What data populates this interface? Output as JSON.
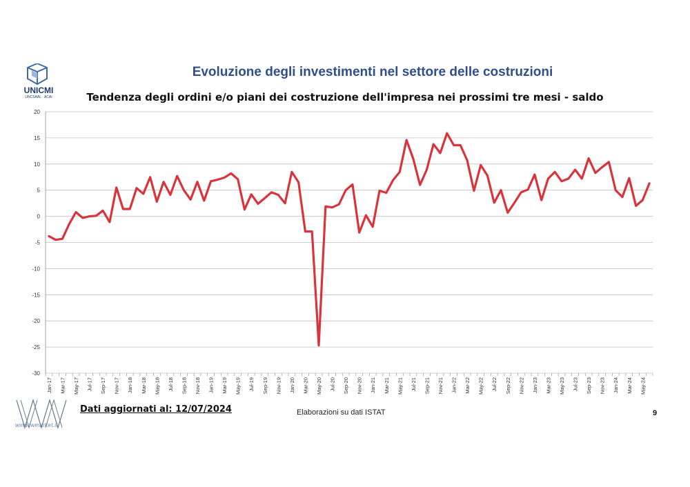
{
  "logo": {
    "name": "UNICMI",
    "sub": "UNCSAAL · ACAI"
  },
  "title": "Evoluzione degli investimenti nel settore delle costruzioni",
  "subtitle": "Tendenza degli ordini e/o piani dei costruzione dell'impresa nei prossimi tre mesi - saldo",
  "footer": {
    "updated": "Dati aggiornati al: 12/07/2024",
    "source": "Elaborazioni su dati ISTAT",
    "page": "9",
    "watermark": "windowmarket.it"
  },
  "colors": {
    "line": "#d9343b",
    "title": "#2f4f8a",
    "grid": "#bfbfbf",
    "axis": "#888888"
  },
  "chart_data": {
    "type": "line",
    "ylim": [
      -30,
      20
    ],
    "yticks": [
      20,
      15,
      10,
      5,
      0,
      -5,
      -10,
      -15,
      -20,
      -25,
      -30
    ],
    "grid": true,
    "tick_labels": [
      "Jan-17",
      "Mar-17",
      "May-17",
      "Jul-17",
      "Sep-17",
      "Nov-17",
      "Jan-18",
      "Mar-18",
      "May-18",
      "Jul-18",
      "Sep-18",
      "Nov-18",
      "Jan-19",
      "Mar-19",
      "May-19",
      "Jul-19",
      "Sep-19",
      "Nov-19",
      "Jan-20",
      "Mar-20",
      "May-20",
      "Jul-20",
      "Sep-20",
      "Nov-20",
      "Jan-21",
      "Mar-21",
      "May-21",
      "Jul-21",
      "Sep-21",
      "Nov-21",
      "Jan-22",
      "Mar-22",
      "May-22",
      "Jul-22",
      "Sep-22",
      "Nov-22",
      "Jan-23",
      "Mar-23",
      "May-23",
      "Jul-23",
      "Sep-23",
      "Nov-23",
      "Jan-24",
      "Mar-24",
      "May-24"
    ],
    "series": [
      {
        "values": [
          -3.8,
          -4.5,
          -4.3,
          -1.5,
          0.8,
          -0.3,
          0,
          0.1,
          1.1,
          -1.1,
          5.5,
          1.4,
          1.4,
          5.4,
          4.3,
          7.5,
          2.8,
          6.6,
          4.1,
          7.7,
          5.0,
          3.2,
          6.6,
          3.0,
          6.7,
          7.0,
          7.4,
          8.2,
          7.1,
          1.3,
          4.2,
          2.4,
          3.5,
          4.6,
          4.1,
          2.5,
          8.5,
          6.5,
          -2.9,
          -2.9,
          -24.7,
          1.9,
          1.7,
          2.3,
          5.0,
          6.1,
          -3.1,
          0.2,
          -2.0,
          4.9,
          4.5,
          6.9,
          8.5,
          14.6,
          11.0,
          6.0,
          8.9,
          13.8,
          12.1,
          15.9,
          13.6,
          13.6,
          10.7,
          4.9,
          9.8,
          7.8,
          2.6,
          5.0,
          0.7,
          2.6,
          4.6,
          5.1,
          8.0,
          3.1,
          7.2,
          8.5,
          6.7,
          7.2,
          8.9,
          7.2,
          11.1,
          8.3,
          9.4,
          10.4,
          5.0,
          3.7,
          7.3,
          2.0,
          3.1,
          6.3
        ]
      }
    ]
  }
}
